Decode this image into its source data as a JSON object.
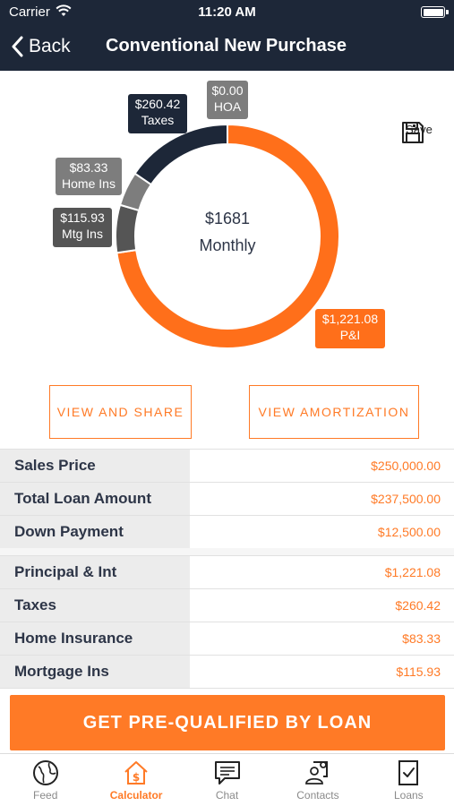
{
  "status_bar": {
    "carrier": "Carrier",
    "time": "11:20 AM"
  },
  "nav": {
    "back_label": "Back",
    "title": "Conventional New Purchase"
  },
  "chart_data": {
    "type": "pie",
    "title": "",
    "center_amount": "$1681",
    "center_label": "Monthly",
    "slices": [
      {
        "name": "P&I",
        "value": 1221.08,
        "display": "$1,221.08",
        "color": "#ff6f1a"
      },
      {
        "name": "Mtg Ins",
        "value": 115.93,
        "display": "$115.93",
        "color": "#555555"
      },
      {
        "name": "Home Ins",
        "value": 83.33,
        "display": "$83.33",
        "color": "#7d7d7d"
      },
      {
        "name": "Taxes",
        "value": 260.42,
        "display": "$260.42",
        "color": "#1d2738"
      },
      {
        "name": "HOA",
        "value": 0.0,
        "display": "$0.00",
        "color": "#7d7d7d"
      }
    ]
  },
  "labels": {
    "taxes": {
      "amount": "$260.42",
      "name": "Taxes"
    },
    "hoa": {
      "amount": "$0.00",
      "name": "HOA"
    },
    "home_ins": {
      "amount": "$83.33",
      "name": "Home Ins"
    },
    "mtg_ins": {
      "amount": "$115.93",
      "name": "Mtg Ins"
    },
    "pi": {
      "amount": "$1,221.08",
      "name": "P&I"
    }
  },
  "save_label": "Save",
  "buttons": {
    "view_share": "VIEW AND SHARE",
    "view_amortization": "VIEW AMORTIZATION"
  },
  "loan_summary": [
    {
      "label": "Sales Price",
      "value": "$250,000.00"
    },
    {
      "label": "Total Loan Amount",
      "value": "$237,500.00"
    },
    {
      "label": "Down Payment",
      "value": "$12,500.00"
    }
  ],
  "payment_breakdown": [
    {
      "label": "Principal & Int",
      "value": "$1,221.08"
    },
    {
      "label": "Taxes",
      "value": "$260.42"
    },
    {
      "label": "Home Insurance",
      "value": "$83.33"
    },
    {
      "label": "Mortgage Ins",
      "value": "$115.93"
    }
  ],
  "cta_label": "GET PRE-QUALIFIED BY LOAN",
  "tabs": [
    {
      "label": "Feed",
      "icon": "globe-icon",
      "active": false
    },
    {
      "label": "Calculator",
      "icon": "calculator-house-icon",
      "active": true
    },
    {
      "label": "Chat",
      "icon": "chat-icon",
      "active": false
    },
    {
      "label": "Contacts",
      "icon": "contacts-icon",
      "active": false
    },
    {
      "label": "Loans",
      "icon": "loans-document-icon",
      "active": false
    }
  ],
  "colors": {
    "accent": "#ff7a26",
    "header": "#1d2738"
  }
}
